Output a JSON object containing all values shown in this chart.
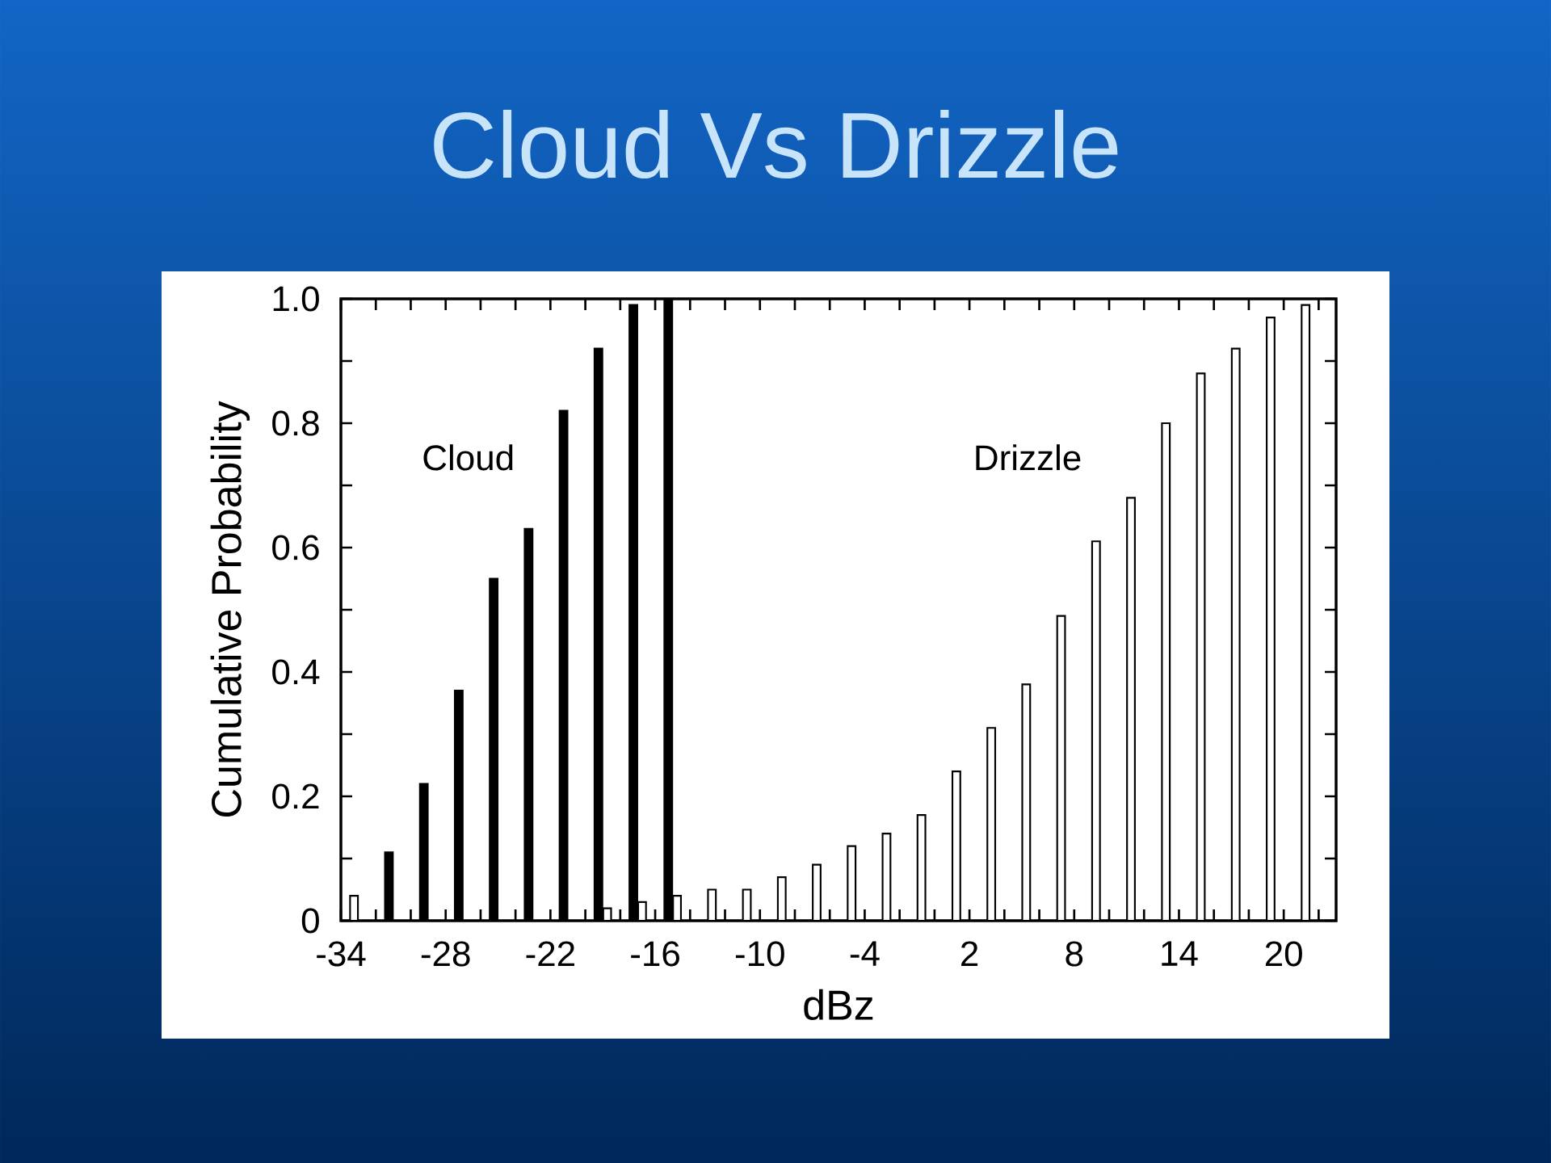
{
  "chart_data": {
    "type": "bar",
    "title": "Cloud Vs Drizzle",
    "xlabel": "dBz",
    "ylabel": "Cumulative Probability",
    "x": [
      -33,
      -31,
      -29,
      -27,
      -25,
      -23,
      -21,
      -19,
      -17,
      -15,
      -13,
      -11,
      -9,
      -7,
      -5,
      -3,
      -1,
      1,
      3,
      5,
      7,
      9,
      11,
      13,
      15,
      17,
      19,
      21
    ],
    "series": [
      {
        "name": "Cloud",
        "color": "#000000",
        "colors": [
          "#ffffff",
          "#000000",
          "#000000",
          "#000000",
          "#000000",
          "#000000",
          "#000000",
          "#000000",
          "#000000",
          "#000000",
          "#000000",
          "#000000",
          "#000000",
          "#000000",
          "#000000",
          "#000000",
          "#000000",
          "#000000",
          "#000000",
          "#000000",
          "#000000",
          "#000000",
          "#000000",
          "#000000",
          "#000000",
          "#000000",
          "#000000",
          "#000000"
        ],
        "values": [
          0.04,
          0.11,
          0.22,
          0.37,
          0.55,
          0.63,
          0.82,
          0.92,
          0.99,
          1.0,
          null,
          null,
          null,
          null,
          null,
          null,
          null,
          null,
          null,
          null,
          null,
          null,
          null,
          null,
          null,
          null,
          null,
          null
        ]
      },
      {
        "name": "Drizzle",
        "color": "#ffffff",
        "values": [
          null,
          null,
          null,
          null,
          null,
          null,
          null,
          0.02,
          0.03,
          0.04,
          0.05,
          0.05,
          0.07,
          0.09,
          0.12,
          0.14,
          0.17,
          0.24,
          0.31,
          0.38,
          0.49,
          0.61,
          0.68,
          0.8,
          0.88,
          0.92,
          0.97,
          0.99
        ]
      }
    ],
    "xlim": [
      -34,
      23
    ],
    "xticks": [
      -34,
      {
        "value": -32,
        "label": null
      },
      {
        "value": -30,
        "label": null
      },
      -28,
      {
        "value": -26,
        "label": null
      },
      {
        "value": -24,
        "label": null
      },
      -22,
      {
        "value": -20,
        "label": null
      },
      {
        "value": -18,
        "label": null
      },
      -16,
      {
        "value": -14,
        "label": null
      },
      {
        "value": -12,
        "label": null
      },
      -10,
      {
        "value": -8,
        "label": null
      },
      {
        "value": -6,
        "label": null
      },
      -4,
      {
        "value": -2,
        "label": null
      },
      {
        "value": 0,
        "label": null
      },
      2,
      {
        "value": 4,
        "label": null
      },
      {
        "value": 6,
        "label": null
      },
      8,
      {
        "value": 10,
        "label": null
      },
      {
        "value": 12,
        "label": null
      },
      14,
      {
        "value": 16,
        "label": null
      },
      {
        "value": 18,
        "label": null
      },
      20,
      {
        "value": 22,
        "label": null
      }
    ],
    "ylim": [
      0,
      1
    ],
    "yticks": [
      0,
      {
        "value": 0.1,
        "label": null
      },
      0.2,
      {
        "value": 0.3,
        "label": null
      },
      0.4,
      {
        "value": 0.5,
        "label": null
      },
      0.6,
      {
        "value": 0.7,
        "label": null
      },
      0.8,
      {
        "value": 0.9,
        "label": null
      },
      {
        "value": 1,
        "label": "1.0"
      }
    ]
  }
}
